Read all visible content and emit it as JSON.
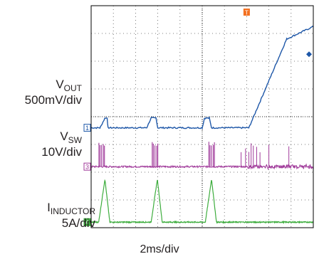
{
  "chart_data": {
    "type": "line",
    "title": "",
    "xlabel": "2ms/div",
    "x_divisions": 10,
    "y_divisions": 8,
    "time_per_div_ms": 2,
    "series": [
      {
        "name": "VOUT",
        "scale": "500mV/div",
        "marker": "1",
        "color": "#1e57a8",
        "x_div": [
          0,
          0.4,
          0.62,
          0.72,
          0.76,
          2.5,
          2.7,
          2.92,
          3.0,
          5.0,
          5.1,
          5.32,
          5.42,
          7.1,
          8.8,
          10
        ],
        "y_div": [
          3.6,
          3.6,
          3.95,
          3.95,
          3.6,
          3.6,
          3.95,
          3.95,
          3.6,
          3.6,
          3.95,
          3.95,
          3.6,
          3.6,
          6.8,
          7.25
        ]
      },
      {
        "name": "VSW",
        "scale": "10V/div",
        "marker": "3",
        "color": "#a03a9a",
        "pulse_starts_div": [
          0.35,
          2.75,
          5.3
        ],
        "baseline_div": 2.2
      },
      {
        "name": "IINDUCTOR",
        "scale": "5A/div",
        "marker": "4",
        "color": "#3ead3e",
        "peak_x_div": [
          0.62,
          2.98,
          5.42
        ],
        "peak_div": 1.75,
        "baseline_div": 0.2
      }
    ],
    "trigger_marker": "T",
    "grid": true
  },
  "labels": {
    "vout_main": "V",
    "vout_sub": "OUT",
    "vout_scale": "500mV/div",
    "vsw_main": "V",
    "vsw_sub": "SW",
    "vsw_scale": "10V/div",
    "iind_main": "I",
    "iind_sub": "INDUCTOR",
    "iind_scale": "5A/div",
    "time_scale": "2ms/div"
  }
}
